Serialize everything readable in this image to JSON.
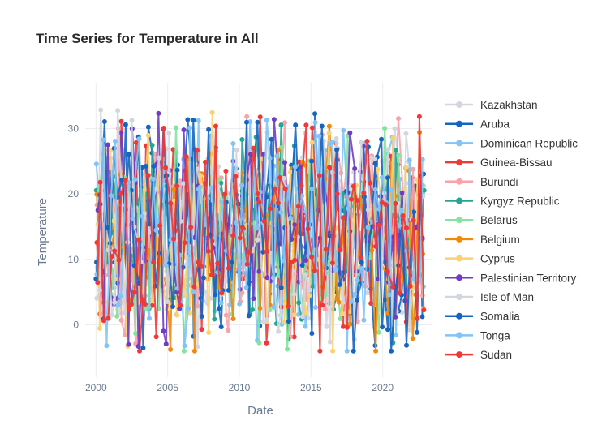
{
  "chart_data": {
    "type": "line",
    "title": "Time Series for Temperature in All",
    "xlabel": "Date",
    "ylabel": "Temperature",
    "x_range": [
      "1999-04-01",
      "2023-06-01"
    ],
    "x_ticks": [
      "2000",
      "2005",
      "2010",
      "2015",
      "2020"
    ],
    "ylim": [
      -8,
      37
    ],
    "y_ticks": [
      0,
      10,
      20,
      30
    ],
    "grid": true,
    "legend_position": "right",
    "series": [
      {
        "name": "Kazakhstan",
        "color": "#d3d6df"
      },
      {
        "name": "Aruba",
        "color": "#1565c0"
      },
      {
        "name": "Dominican Republic",
        "color": "#82c4f5"
      },
      {
        "name": "Guinea-Bissau",
        "color": "#ef3939"
      },
      {
        "name": "Burundi",
        "color": "#f6a3aa"
      },
      {
        "name": "Kyrgyz Republic",
        "color": "#26a594"
      },
      {
        "name": "Belarus",
        "color": "#85e39d"
      },
      {
        "name": "Belgium",
        "color": "#f08a0b"
      },
      {
        "name": "Cyprus",
        "color": "#fcd170"
      },
      {
        "name": "Palestinian Territory",
        "color": "#6f3cc2"
      },
      {
        "name": "Isle of Man",
        "color": "#d3d6df"
      },
      {
        "name": "Somalia",
        "color": "#1565c0"
      },
      {
        "name": "Tonga",
        "color": "#82c4f5"
      },
      {
        "name": "Sudan",
        "color": "#ef3939"
      }
    ]
  }
}
